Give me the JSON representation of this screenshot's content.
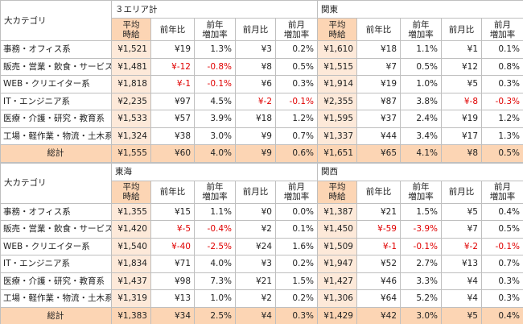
{
  "negative_color": "#e00000",
  "columns": [
    "平均\n時給",
    "前年比",
    "前年\n増加率",
    "前月比",
    "前月\n増加率"
  ],
  "blocks": [
    {
      "category_header": "大カテゴリ",
      "regions": [
        "３エリア計",
        "関東"
      ],
      "rows": [
        {
          "label": "事務・オフィス系",
          "cells": [
            "¥1,521",
            "¥19",
            "1.3%",
            "¥3",
            "0.2%",
            "¥1,610",
            "¥18",
            "1.1%",
            "¥1",
            "0.1%"
          ]
        },
        {
          "label": "販売・営業・飲食・サービス系",
          "cells": [
            "¥1,481",
            "¥-12",
            "-0.8%",
            "¥8",
            "0.5%",
            "¥1,515",
            "¥7",
            "0.5%",
            "¥12",
            "0.8%"
          ]
        },
        {
          "label": "WEB・クリエイター系",
          "cells": [
            "¥1,818",
            "¥-1",
            "-0.1%",
            "¥6",
            "0.3%",
            "¥1,914",
            "¥19",
            "1.0%",
            "¥5",
            "0.3%"
          ]
        },
        {
          "label": "IT・エンジニア系",
          "cells": [
            "¥2,235",
            "¥97",
            "4.5%",
            "¥-2",
            "-0.1%",
            "¥2,355",
            "¥87",
            "3.8%",
            "¥-8",
            "-0.3%"
          ]
        },
        {
          "label": "医療・介護・研究・教育系",
          "cells": [
            "¥1,533",
            "¥57",
            "3.9%",
            "¥18",
            "1.2%",
            "¥1,595",
            "¥37",
            "2.4%",
            "¥19",
            "1.2%"
          ]
        },
        {
          "label": "工場・軽作業・物流・土木系",
          "cells": [
            "¥1,324",
            "¥38",
            "3.0%",
            "¥9",
            "0.7%",
            "¥1,337",
            "¥44",
            "3.4%",
            "¥17",
            "1.3%"
          ]
        }
      ],
      "total": {
        "label": "総計",
        "cells": [
          "¥1,555",
          "¥60",
          "4.0%",
          "¥9",
          "0.6%",
          "¥1,651",
          "¥65",
          "4.1%",
          "¥8",
          "0.5%"
        ]
      }
    },
    {
      "category_header": "大カテゴリ",
      "regions": [
        "東海",
        "関西"
      ],
      "rows": [
        {
          "label": "事務・オフィス系",
          "cells": [
            "¥1,355",
            "¥15",
            "1.1%",
            "¥0",
            "0.0%",
            "¥1,387",
            "¥21",
            "1.5%",
            "¥5",
            "0.4%"
          ]
        },
        {
          "label": "販売・営業・飲食・サービス系",
          "cells": [
            "¥1,420",
            "¥-5",
            "-0.4%",
            "¥2",
            "0.1%",
            "¥1,450",
            "¥-59",
            "-3.9%",
            "¥7",
            "0.5%"
          ]
        },
        {
          "label": "WEB・クリエイター系",
          "cells": [
            "¥1,540",
            "¥-40",
            "-2.5%",
            "¥24",
            "1.6%",
            "¥1,509",
            "¥-1",
            "-0.1%",
            "¥-2",
            "-0.1%"
          ]
        },
        {
          "label": "IT・エンジニア系",
          "cells": [
            "¥1,834",
            "¥71",
            "4.0%",
            "¥3",
            "0.2%",
            "¥1,947",
            "¥52",
            "2.7%",
            "¥13",
            "0.7%"
          ]
        },
        {
          "label": "医療・介護・研究・教育系",
          "cells": [
            "¥1,437",
            "¥98",
            "7.3%",
            "¥21",
            "1.5%",
            "¥1,427",
            "¥46",
            "3.3%",
            "¥4",
            "0.3%"
          ]
        },
        {
          "label": "工場・軽作業・物流・土木系",
          "cells": [
            "¥1,319",
            "¥13",
            "1.0%",
            "¥2",
            "0.2%",
            "¥1,306",
            "¥64",
            "5.2%",
            "¥4",
            "0.3%"
          ]
        }
      ],
      "total": {
        "label": "総計",
        "cells": [
          "¥1,383",
          "¥34",
          "2.5%",
          "¥4",
          "0.3%",
          "¥1,429",
          "¥42",
          "3.0%",
          "¥5",
          "0.4%"
        ]
      }
    }
  ]
}
